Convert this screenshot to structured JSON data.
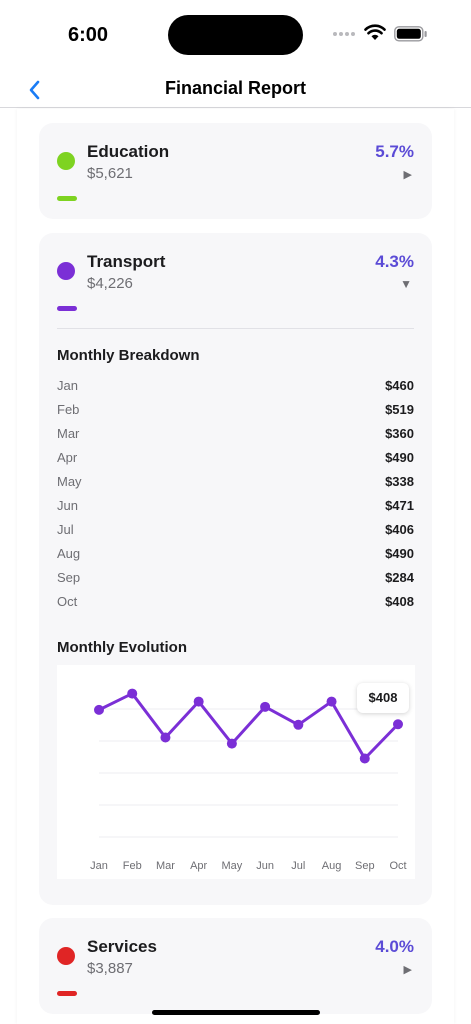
{
  "status": {
    "time": "6:00"
  },
  "nav": {
    "title": "Financial Report"
  },
  "categories": [
    {
      "name": "Education",
      "amount": "$5,621",
      "percent": "5.7%",
      "color": "#7ed321",
      "chevron": "▶"
    },
    {
      "name": "Transport",
      "amount": "$4,226",
      "percent": "4.3%",
      "color": "#7b2fd6",
      "chevron": "▼"
    },
    {
      "name": "Services",
      "amount": "$3,887",
      "percent": "4.0%",
      "color": "#e02525",
      "chevron": "▶"
    }
  ],
  "breakdown": {
    "title": "Monthly Breakdown",
    "rows": [
      {
        "month": "Jan",
        "value": "$460"
      },
      {
        "month": "Feb",
        "value": "$519"
      },
      {
        "month": "Mar",
        "value": "$360"
      },
      {
        "month": "Apr",
        "value": "$490"
      },
      {
        "month": "May",
        "value": "$338"
      },
      {
        "month": "Jun",
        "value": "$471"
      },
      {
        "month": "Jul",
        "value": "$406"
      },
      {
        "month": "Aug",
        "value": "$490"
      },
      {
        "month": "Sep",
        "value": "$284"
      },
      {
        "month": "Oct",
        "value": "$408"
      }
    ]
  },
  "evolution": {
    "title": "Monthly Evolution",
    "tooltip": "$408"
  },
  "chart_data": {
    "type": "line",
    "categories": [
      "Jan",
      "Feb",
      "Mar",
      "Apr",
      "May",
      "Jun",
      "Jul",
      "Aug",
      "Sep",
      "Oct"
    ],
    "series": [
      {
        "values": [
          460,
          519,
          360,
          490,
          338,
          471,
          406,
          490,
          284,
          408
        ],
        "color": "#7b2fd6"
      }
    ],
    "ylim": [
      0,
      550
    ],
    "grid": true,
    "title": "",
    "xlabel": "",
    "ylabel": ""
  }
}
